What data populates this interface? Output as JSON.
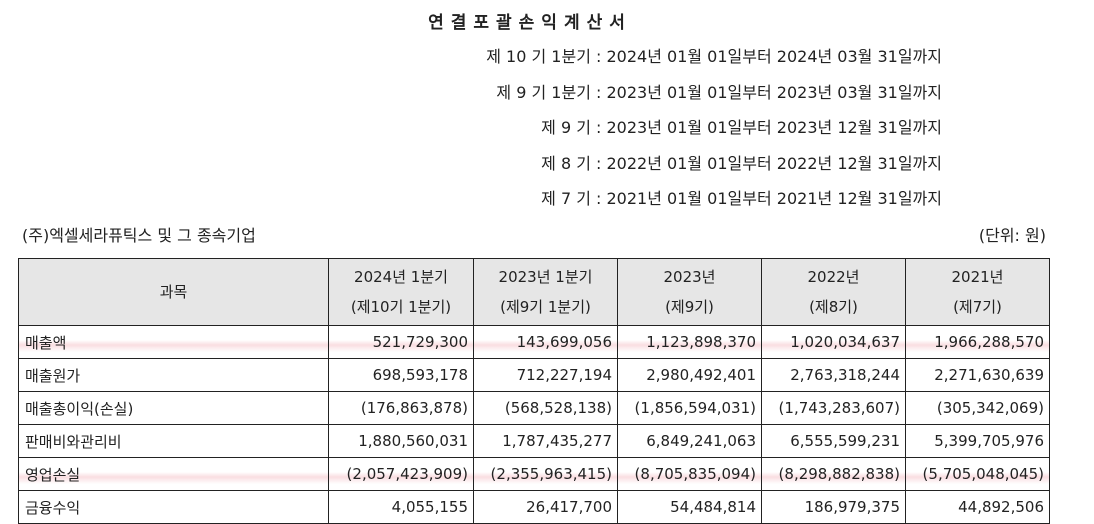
{
  "document": {
    "title": "연결포괄손익계산서",
    "periods": [
      "제 10 기 1분기 : 2024년 01월 01일부터 2024년 03월 31일까지",
      "제 9 기 1분기 : 2023년 01월 01일부터 2023년 03월 31일까지",
      "제 9 기 : 2023년 01월 01일부터 2023년 12월 31일까지",
      "제 8 기 : 2022년 01월 01일부터 2022년 12월 31일까지",
      "제 7 기 : 2021년 01월 01일부터 2021년 12월 31일까지"
    ],
    "company": "(주)엑셀세라퓨틱스 및 그 종속기업",
    "unit": "(단위: 원)"
  },
  "table": {
    "item_header": "과목",
    "columns": [
      {
        "top": "2024년 1분기",
        "sub": "(제10기 1분기)"
      },
      {
        "top": "2023년 1분기",
        "sub": "(제9기 1분기)"
      },
      {
        "top": "2023년",
        "sub": "(제9기)"
      },
      {
        "top": "2022년",
        "sub": "(제8기)"
      },
      {
        "top": "2021년",
        "sub": "(제7기)"
      }
    ],
    "rows": [
      {
        "label": "매출액",
        "values": [
          "521,729,300",
          "143,699,056",
          "1,123,898,370",
          "1,020,034,637",
          "1,966,288,570"
        ],
        "highlight": true
      },
      {
        "label": "매출원가",
        "values": [
          "698,593,178",
          "712,227,194",
          "2,980,492,401",
          "2,763,318,244",
          "2,271,630,639"
        ],
        "highlight": false
      },
      {
        "label": "매출총이익(손실)",
        "values": [
          "(176,863,878)",
          "(568,528,138)",
          "(1,856,594,031)",
          "(1,743,283,607)",
          "(305,342,069)"
        ],
        "highlight": false
      },
      {
        "label": "판매비와관리비",
        "values": [
          "1,880,560,031",
          "1,787,435,277",
          "6,849,241,063",
          "6,555,599,231",
          "5,399,705,976"
        ],
        "highlight": false
      },
      {
        "label": "영업손실",
        "values": [
          "(2,057,423,909)",
          "(2,355,963,415)",
          "(8,705,835,094)",
          "(8,298,882,838)",
          "(5,705,048,045)"
        ],
        "highlight": true
      },
      {
        "label": "금융수익",
        "values": [
          "4,055,155",
          "26,417,700",
          "54,484,814",
          "186,979,375",
          "44,892,506"
        ],
        "highlight": false
      }
    ]
  }
}
